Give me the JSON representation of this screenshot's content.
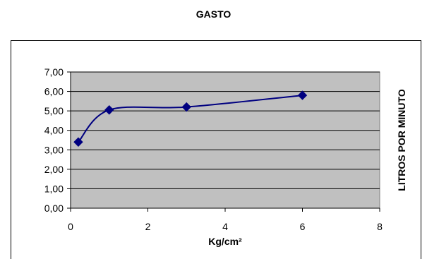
{
  "chart_data": {
    "type": "line",
    "title": "GASTO",
    "xlabel": "Kg/cm²",
    "ylabel": "LITROS POR MINUTO",
    "xlim": [
      0,
      8
    ],
    "ylim": [
      0,
      7
    ],
    "x_ticks": [
      "0",
      "2",
      "4",
      "6",
      "8"
    ],
    "y_ticks": [
      "0,00",
      "1,00",
      "2,00",
      "3,00",
      "4,00",
      "5,00",
      "6,00",
      "7,00"
    ],
    "grid": true,
    "plot_background": "#c0c0c0",
    "series": [
      {
        "color": "#000080",
        "marker": "diamond",
        "smooth": true,
        "points": [
          {
            "x": 0.2,
            "y": 3.4
          },
          {
            "x": 1,
            "y": 5.05
          },
          {
            "x": 3,
            "y": 5.2
          },
          {
            "x": 6,
            "y": 5.8
          }
        ]
      }
    ]
  }
}
